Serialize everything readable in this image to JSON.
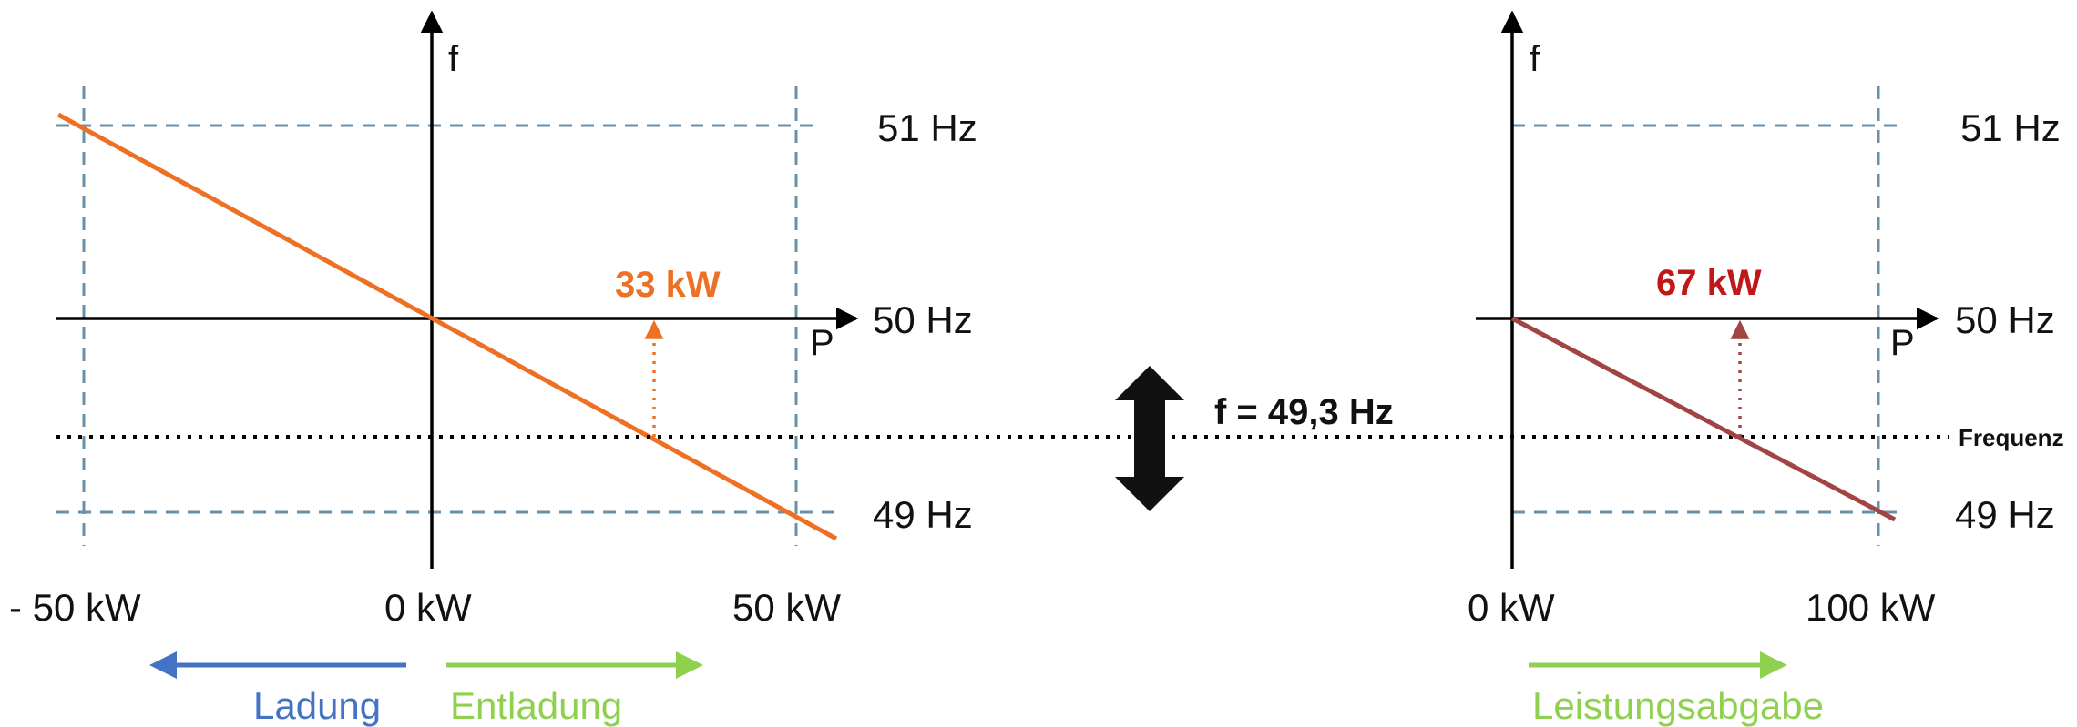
{
  "left": {
    "axis_f": "f",
    "axis_p": "P",
    "freq_labels": {
      "upper": "51 Hz",
      "nominal": "50 Hz",
      "lower": "49 Hz"
    },
    "power_labels": {
      "min": "- 50 kW",
      "zero": "0 kW",
      "max": "50 kW"
    },
    "result_value": "33 kW",
    "arrow_left_label": "Ladung",
    "arrow_right_label": "Entladung"
  },
  "right": {
    "axis_f": "f",
    "axis_p": "P",
    "freq_labels": {
      "upper": "51 Hz",
      "nominal": "50 Hz",
      "lower": "49 Hz"
    },
    "power_labels": {
      "zero": "0 kW",
      "max": "100 kW"
    },
    "result_value": "67 kW",
    "arrow_label": "Leistungsabgabe"
  },
  "center": {
    "frequency_readout": "f = 49,3 Hz",
    "line_label": "Frequenz"
  },
  "colors": {
    "left_curve": "#ee7024",
    "right_curve": "#a04444",
    "left_value": "#ee7024",
    "right_value": "#c01818",
    "ladung": "#4472c4",
    "entladung": "#8fd14f",
    "dashed": "#6a8fa8",
    "axis": "#000000"
  }
}
